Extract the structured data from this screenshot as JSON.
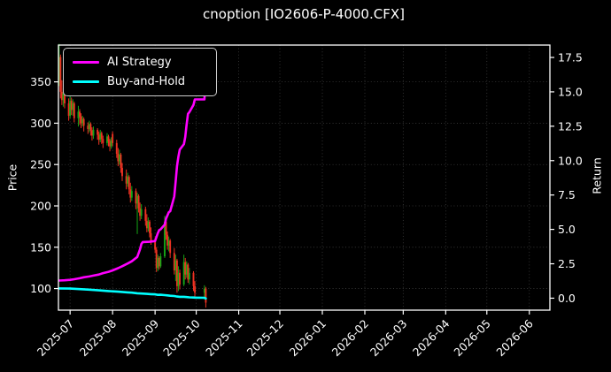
{
  "title": "cnoption [IO2606-P-4000.CFX]",
  "legend": {
    "items": [
      {
        "label": "AI Strategy",
        "color": "#ff00ff",
        "icon": "line-swatch"
      },
      {
        "label": "Buy-and-Hold",
        "color": "#00ffff",
        "icon": "line-swatch"
      }
    ]
  },
  "axes": {
    "left_label": "Price",
    "right_label": "Return"
  },
  "chart_data": {
    "type": "candlestick+line",
    "title": "cnoption [IO2606-P-4000.CFX]",
    "xlabel": "",
    "ylabel_left": "Price",
    "ylabel_right": "Return",
    "x_unit": "calendar days since first candle (2025-06-23); candles end ~2025-10-09",
    "xlim": [
      -0.5,
      358
    ],
    "price_ylim": [
      73.9,
      394.5
    ],
    "return_ylim": [
      -0.87,
      18.4
    ],
    "grid": true,
    "legend_position": "upper left",
    "background": "#000000",
    "grid_color": "#3d3d3d",
    "spine_color": "#ffffff",
    "candle_colors": {
      "up": "#16a516",
      "down": "#ee3222"
    },
    "x_ticks": [
      {
        "label": "2025-07",
        "day": 8
      },
      {
        "label": "2025-08",
        "day": 39
      },
      {
        "label": "2025-09",
        "day": 70
      },
      {
        "label": "2025-10",
        "day": 100
      },
      {
        "label": "2025-11",
        "day": 131
      },
      {
        "label": "2025-12",
        "day": 161
      },
      {
        "label": "2026-01",
        "day": 192
      },
      {
        "label": "2026-02",
        "day": 223
      },
      {
        "label": "2026-03",
        "day": 251
      },
      {
        "label": "2026-04",
        "day": 282
      },
      {
        "label": "2026-05",
        "day": 312
      },
      {
        "label": "2026-06",
        "day": 343
      }
    ],
    "price_ticks": [
      {
        "label": "100",
        "value": 100
      },
      {
        "label": "150",
        "value": 150
      },
      {
        "label": "200",
        "value": 200
      },
      {
        "label": "250",
        "value": 250
      },
      {
        "label": "300",
        "value": 300
      },
      {
        "label": "350",
        "value": 350
      }
    ],
    "return_ticks": [
      {
        "label": "0.0",
        "value": 0
      },
      {
        "label": "2.5",
        "value": 2.5
      },
      {
        "label": "5.0",
        "value": 5
      },
      {
        "label": "7.5",
        "value": 7.5
      },
      {
        "label": "10.0",
        "value": 10
      },
      {
        "label": "12.5",
        "value": 12.5
      },
      {
        "label": "15.0",
        "value": 15
      },
      {
        "label": "17.5",
        "value": 17.5
      }
    ],
    "candles": {
      "columns": [
        "day",
        "open",
        "high",
        "low",
        "close"
      ],
      "rows": [
        [
          0,
          352,
          396,
          345,
          380
        ],
        [
          1,
          380,
          383,
          330,
          338
        ],
        [
          2,
          338,
          352,
          322,
          328
        ],
        [
          3,
          328,
          342,
          320,
          336
        ],
        [
          4,
          336,
          340,
          318,
          324
        ],
        [
          7,
          324,
          330,
          303,
          309
        ],
        [
          8,
          309,
          334,
          306,
          327
        ],
        [
          9,
          327,
          331,
          310,
          316
        ],
        [
          10,
          316,
          329,
          309,
          324
        ],
        [
          11,
          324,
          326,
          301,
          306
        ],
        [
          14,
          306,
          321,
          296,
          314
        ],
        [
          15,
          314,
          317,
          298,
          308
        ],
        [
          16,
          308,
          312,
          294,
          300
        ],
        [
          17,
          300,
          309,
          296,
          305
        ],
        [
          18,
          305,
          307,
          290,
          297
        ],
        [
          21,
          297,
          301,
          287,
          293
        ],
        [
          22,
          293,
          303,
          289,
          299
        ],
        [
          23,
          299,
          301,
          285,
          291
        ],
        [
          24,
          291,
          295,
          279,
          285
        ],
        [
          25,
          285,
          296,
          281,
          292
        ],
        [
          28,
          292,
          294,
          280,
          286
        ],
        [
          29,
          286,
          290,
          274,
          280
        ],
        [
          30,
          280,
          292,
          277,
          288
        ],
        [
          31,
          288,
          290,
          275,
          281
        ],
        [
          32,
          281,
          285,
          270,
          276
        ],
        [
          35,
          276,
          288,
          273,
          284
        ],
        [
          36,
          284,
          286,
          272,
          278
        ],
        [
          37,
          278,
          281,
          266,
          272
        ],
        [
          38,
          272,
          283,
          269,
          279
        ],
        [
          39,
          287,
          290,
          272,
          276
        ],
        [
          42,
          276,
          280,
          258,
          263
        ],
        [
          43,
          263,
          270,
          248,
          254
        ],
        [
          44,
          254,
          268,
          250,
          262
        ],
        [
          45,
          262,
          264,
          240,
          246
        ],
        [
          46,
          246,
          252,
          230,
          236
        ],
        [
          49,
          236,
          244,
          220,
          227
        ],
        [
          50,
          227,
          240,
          223,
          235
        ],
        [
          51,
          235,
          237,
          214,
          220
        ],
        [
          52,
          220,
          228,
          204,
          210
        ],
        [
          53,
          210,
          224,
          206,
          218
        ],
        [
          56,
          218,
          221,
          196,
          203
        ],
        [
          57,
          203,
          216,
          166,
          212
        ],
        [
          58,
          212,
          214,
          192,
          197
        ],
        [
          59,
          197,
          204,
          182,
          188
        ],
        [
          60,
          188,
          202,
          184,
          196
        ],
        [
          63,
          196,
          199,
          176,
          182
        ],
        [
          64,
          182,
          190,
          168,
          173
        ],
        [
          65,
          173,
          186,
          169,
          181
        ],
        [
          66,
          181,
          183,
          162,
          167
        ],
        [
          67,
          167,
          174,
          153,
          158
        ],
        [
          70,
          158,
          162,
          143,
          147
        ],
        [
          71,
          147,
          150,
          120,
          125
        ],
        [
          72,
          125,
          141,
          121,
          137
        ],
        [
          73,
          137,
          139,
          123,
          127
        ],
        [
          74,
          127,
          143,
          125,
          139
        ],
        [
          77,
          139,
          188,
          137,
          181
        ],
        [
          78,
          181,
          185,
          159,
          165
        ],
        [
          79,
          165,
          169,
          147,
          152
        ],
        [
          80,
          152,
          163,
          145,
          158
        ],
        [
          81,
          158,
          160,
          137,
          143
        ],
        [
          84,
          143,
          149,
          117,
          122
        ],
        [
          85,
          122,
          141,
          109,
          134
        ],
        [
          86,
          134,
          136,
          95,
          103
        ],
        [
          87,
          103,
          127,
          97,
          119
        ],
        [
          88,
          119,
          123,
          99,
          105
        ],
        [
          91,
          105,
          141,
          103,
          132
        ],
        [
          92,
          132,
          137,
          111,
          117
        ],
        [
          93,
          117,
          133,
          113,
          129
        ],
        [
          94,
          129,
          131,
          107,
          111
        ],
        [
          95,
          111,
          125,
          105,
          119
        ],
        [
          98,
          119,
          121,
          97,
          103
        ],
        [
          99,
          103,
          109,
          90,
          95
        ],
        [
          106,
          95,
          104,
          87,
          100
        ],
        [
          107,
          100,
          102,
          77,
          83
        ]
      ]
    },
    "series": [
      {
        "name": "AI Strategy",
        "axis": "return",
        "color": "#ff00ff",
        "points": [
          [
            0,
            1.28
          ],
          [
            4,
            1.3
          ],
          [
            8,
            1.33
          ],
          [
            11,
            1.38
          ],
          [
            15,
            1.45
          ],
          [
            18,
            1.52
          ],
          [
            22,
            1.58
          ],
          [
            25,
            1.64
          ],
          [
            29,
            1.72
          ],
          [
            32,
            1.82
          ],
          [
            36,
            1.92
          ],
          [
            39,
            2.02
          ],
          [
            43,
            2.18
          ],
          [
            46,
            2.32
          ],
          [
            50,
            2.52
          ],
          [
            53,
            2.68
          ],
          [
            57,
            3.0
          ],
          [
            59,
            3.55
          ],
          [
            60,
            3.95
          ],
          [
            61,
            4.08
          ],
          [
            66,
            4.1
          ],
          [
            70,
            4.15
          ],
          [
            71,
            4.45
          ],
          [
            72,
            4.72
          ],
          [
            73,
            4.95
          ],
          [
            74,
            5.0
          ],
          [
            77,
            5.35
          ],
          [
            78,
            5.78
          ],
          [
            79,
            6.02
          ],
          [
            80,
            6.25
          ],
          [
            81,
            6.32
          ],
          [
            84,
            7.4
          ],
          [
            85,
            8.5
          ],
          [
            86,
            9.6
          ],
          [
            87,
            10.3
          ],
          [
            88,
            10.8
          ],
          [
            91,
            11.2
          ],
          [
            92,
            11.72
          ],
          [
            93,
            12.6
          ],
          [
            94,
            13.4
          ],
          [
            95,
            13.52
          ],
          [
            98,
            14.05
          ],
          [
            99,
            14.45
          ],
          [
            106,
            14.45
          ],
          [
            107,
            17.62
          ]
        ]
      },
      {
        "name": "Buy-and-Hold",
        "axis": "return",
        "color": "#00ffff",
        "points": [
          [
            0,
            0.71
          ],
          [
            8,
            0.7
          ],
          [
            15,
            0.66
          ],
          [
            22,
            0.62
          ],
          [
            29,
            0.57
          ],
          [
            36,
            0.52
          ],
          [
            43,
            0.47
          ],
          [
            50,
            0.42
          ],
          [
            53,
            0.4
          ],
          [
            57,
            0.36
          ],
          [
            60,
            0.34
          ],
          [
            64,
            0.31
          ],
          [
            67,
            0.29
          ],
          [
            70,
            0.28
          ],
          [
            72,
            0.24
          ],
          [
            74,
            0.25
          ],
          [
            77,
            0.22
          ],
          [
            79,
            0.2
          ],
          [
            81,
            0.18
          ],
          [
            84,
            0.16
          ],
          [
            86,
            0.12
          ],
          [
            88,
            0.1
          ],
          [
            91,
            0.1
          ],
          [
            93,
            0.08
          ],
          [
            95,
            0.06
          ],
          [
            98,
            0.05
          ],
          [
            99,
            0.04
          ],
          [
            106,
            0.03
          ],
          [
            107,
            -0.02
          ]
        ]
      }
    ]
  }
}
